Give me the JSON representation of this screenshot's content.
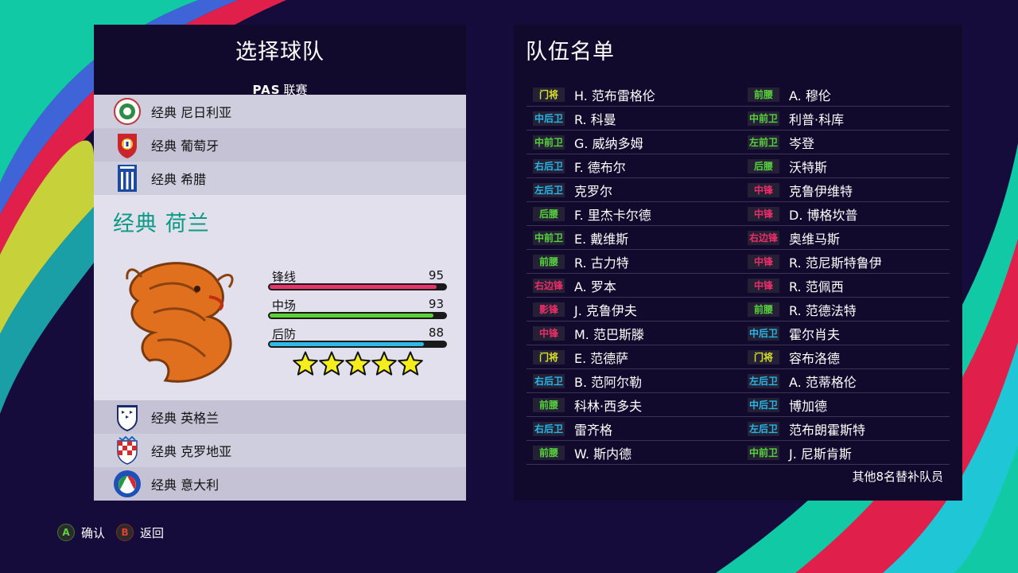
{
  "left_panel": {
    "title": "选择球队",
    "league_code": "PAS",
    "league_suffix": "联赛",
    "teams_above": [
      {
        "name": "经典 尼日利亚",
        "flag_icon": "nigeria-crest-icon"
      },
      {
        "name": "经典 葡萄牙",
        "flag_icon": "portugal-crest-icon"
      },
      {
        "name": "经典 希腊",
        "flag_icon": "greece-crest-icon"
      }
    ],
    "selected": {
      "name": "经典 荷兰",
      "emblem_icon": "orange-lion-icon",
      "stats": [
        {
          "label": "锋线",
          "value": 95,
          "color": "#e8336b"
        },
        {
          "label": "中场",
          "value": 93,
          "color": "#5cd037"
        },
        {
          "label": "后防",
          "value": 88,
          "color": "#2fbbe6"
        }
      ],
      "stars": 5
    },
    "teams_below": [
      {
        "name": "经典 英格兰",
        "flag_icon": "england-crest-icon"
      },
      {
        "name": "经典 克罗地亚",
        "flag_icon": "croatia-crest-icon"
      },
      {
        "name": "经典 意大利",
        "flag_icon": "italy-crest-icon"
      }
    ]
  },
  "right_panel": {
    "title": "队伍名单",
    "left_column": [
      {
        "pos": "门将",
        "type": "gk",
        "name": "H. 范布雷格伦"
      },
      {
        "pos": "中后卫",
        "type": "df",
        "name": "R. 科曼"
      },
      {
        "pos": "中前卫",
        "type": "mf",
        "name": "G. 威纳多姆"
      },
      {
        "pos": "右后卫",
        "type": "df",
        "name": "F. 德布尔"
      },
      {
        "pos": "左后卫",
        "type": "df",
        "name": "克罗尔"
      },
      {
        "pos": "后腰",
        "type": "mf",
        "name": "F. 里杰卡尔德"
      },
      {
        "pos": "中前卫",
        "type": "mf",
        "name": "E. 戴维斯"
      },
      {
        "pos": "前腰",
        "type": "mf",
        "name": "R. 古力特"
      },
      {
        "pos": "右边锋",
        "type": "fw",
        "name": "A. 罗本"
      },
      {
        "pos": "影锋",
        "type": "fw",
        "name": "J. 克鲁伊夫"
      },
      {
        "pos": "中锋",
        "type": "fw",
        "name": "M. 范巴斯滕"
      },
      {
        "pos": "门将",
        "type": "gk",
        "name": "E. 范德萨"
      },
      {
        "pos": "右后卫",
        "type": "df",
        "name": "B. 范阿尔勒"
      },
      {
        "pos": "前腰",
        "type": "mf",
        "name": "科林·西多夫"
      },
      {
        "pos": "右后卫",
        "type": "df",
        "name": "雷齐格"
      },
      {
        "pos": "前腰",
        "type": "mf",
        "name": "W. 斯内德"
      }
    ],
    "right_column": [
      {
        "pos": "前腰",
        "type": "mf",
        "name": "A. 穆伦"
      },
      {
        "pos": "中前卫",
        "type": "mf",
        "name": "利普·科库"
      },
      {
        "pos": "左前卫",
        "type": "mf",
        "name": "岑登"
      },
      {
        "pos": "后腰",
        "type": "mf",
        "name": "沃特斯"
      },
      {
        "pos": "中锋",
        "type": "fw",
        "name": "克鲁伊维特"
      },
      {
        "pos": "中锋",
        "type": "fw",
        "name": "D. 博格坎普"
      },
      {
        "pos": "右边锋",
        "type": "fw",
        "name": "奥维马斯"
      },
      {
        "pos": "中锋",
        "type": "fw",
        "name": "R. 范尼斯特鲁伊"
      },
      {
        "pos": "中锋",
        "type": "fw",
        "name": "R. 范佩西"
      },
      {
        "pos": "前腰",
        "type": "mf",
        "name": "R. 范德法特"
      },
      {
        "pos": "中后卫",
        "type": "df",
        "name": "霍尔肖夫"
      },
      {
        "pos": "门将",
        "type": "gk",
        "name": "容布洛德"
      },
      {
        "pos": "左后卫",
        "type": "df",
        "name": "A. 范蒂格伦"
      },
      {
        "pos": "中后卫",
        "type": "df",
        "name": "博加德"
      },
      {
        "pos": "左后卫",
        "type": "df",
        "name": "范布朗霍斯特"
      },
      {
        "pos": "中前卫",
        "type": "mf",
        "name": "J. 尼斯肯斯"
      }
    ],
    "subs_note": "其他8名替补队员"
  },
  "controls": {
    "confirm_key": "A",
    "confirm_label": "确认",
    "back_key": "B",
    "back_label": "返回"
  }
}
